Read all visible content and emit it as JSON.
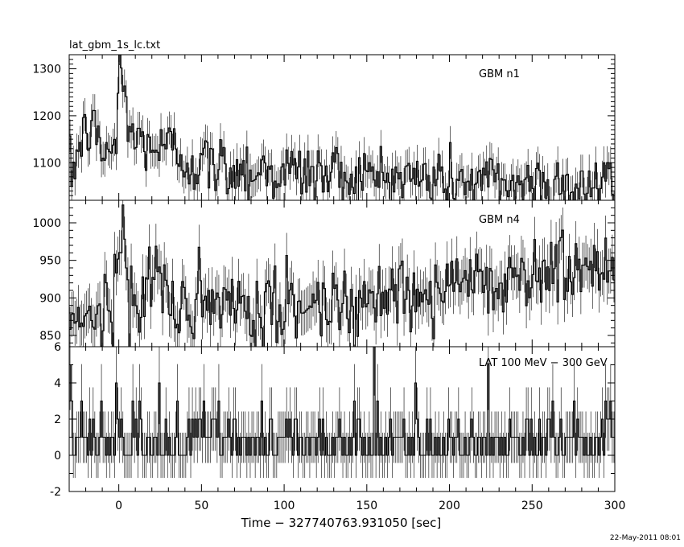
{
  "title": "lat_gbm_1s_lc.txt",
  "timestamp": "22-May-2011 08:01",
  "chart_data": {
    "type": "line",
    "title": "lat_gbm_1s_lc.txt",
    "xlabel": "Time − 327740763.931050 [sec]",
    "xlim": [
      -30,
      300
    ],
    "x_ticks": [
      0,
      50,
      100,
      150,
      200,
      250,
      300
    ],
    "grid": false,
    "x_step": 1,
    "series": [
      {
        "name": "GBM n1",
        "ylim": [
          1020,
          1330
        ],
        "y_ticks": [
          1100,
          1200,
          1300
        ],
        "points": [
          [
            -30,
            1060
          ],
          [
            -26,
            1120
          ],
          [
            -22,
            1150
          ],
          [
            -18,
            1180
          ],
          [
            -14,
            1150
          ],
          [
            -10,
            1120
          ],
          [
            -6,
            1130
          ],
          [
            -2,
            1140
          ],
          [
            0,
            1300
          ],
          [
            2,
            1270
          ],
          [
            4,
            1230
          ],
          [
            6,
            1180
          ],
          [
            8,
            1150
          ],
          [
            10,
            1140
          ],
          [
            15,
            1150
          ],
          [
            20,
            1140
          ],
          [
            25,
            1120
          ],
          [
            30,
            1135
          ],
          [
            35,
            1120
          ],
          [
            40,
            1110
          ],
          [
            45,
            1100
          ],
          [
            50,
            1095
          ],
          [
            60,
            1090
          ],
          [
            70,
            1090
          ],
          [
            80,
            1085
          ],
          [
            90,
            1085
          ],
          [
            100,
            1080
          ],
          [
            110,
            1080
          ],
          [
            120,
            1075
          ],
          [
            130,
            1078
          ],
          [
            140,
            1072
          ],
          [
            150,
            1070
          ],
          [
            160,
            1072
          ],
          [
            170,
            1068
          ],
          [
            180,
            1065
          ],
          [
            190,
            1068
          ],
          [
            200,
            1062
          ],
          [
            210,
            1060
          ],
          [
            220,
            1058
          ],
          [
            230,
            1060
          ],
          [
            240,
            1055
          ],
          [
            250,
            1058
          ],
          [
            260,
            1055
          ],
          [
            270,
            1052
          ],
          [
            280,
            1052
          ],
          [
            290,
            1050
          ],
          [
            300,
            1050
          ]
        ],
        "error": 35,
        "noise": 35
      },
      {
        "name": "GBM n4",
        "ylim": [
          835,
          1030
        ],
        "y_ticks": [
          850,
          900,
          950,
          1000
        ],
        "points": [
          [
            -30,
            875
          ],
          [
            -20,
            885
          ],
          [
            -10,
            880
          ],
          [
            -5,
            885
          ],
          [
            0,
            960
          ],
          [
            2,
            980
          ],
          [
            4,
            940
          ],
          [
            6,
            900
          ],
          [
            10,
            890
          ],
          [
            15,
            900
          ],
          [
            20,
            940
          ],
          [
            22,
            960
          ],
          [
            25,
            920
          ],
          [
            30,
            890
          ],
          [
            40,
            885
          ],
          [
            50,
            880
          ],
          [
            60,
            885
          ],
          [
            70,
            880
          ],
          [
            80,
            882
          ],
          [
            90,
            884
          ],
          [
            100,
            885
          ],
          [
            110,
            888
          ],
          [
            120,
            892
          ],
          [
            130,
            895
          ],
          [
            140,
            898
          ],
          [
            150,
            900
          ],
          [
            160,
            903
          ],
          [
            170,
            906
          ],
          [
            180,
            910
          ],
          [
            190,
            915
          ],
          [
            200,
            920
          ],
          [
            210,
            922
          ],
          [
            220,
            925
          ],
          [
            230,
            925
          ],
          [
            240,
            928
          ],
          [
            250,
            930
          ],
          [
            260,
            935
          ],
          [
            270,
            935
          ],
          [
            280,
            938
          ],
          [
            290,
            938
          ],
          [
            300,
            940
          ]
        ],
        "error": 30,
        "noise": 25
      },
      {
        "name": "LAT 100 MeV − 300 GeV",
        "ylim": [
          -2,
          6
        ],
        "y_ticks": [
          -2,
          0,
          2,
          4,
          6
        ],
        "counts": "poisson",
        "mean": 0.85
      }
    ]
  }
}
